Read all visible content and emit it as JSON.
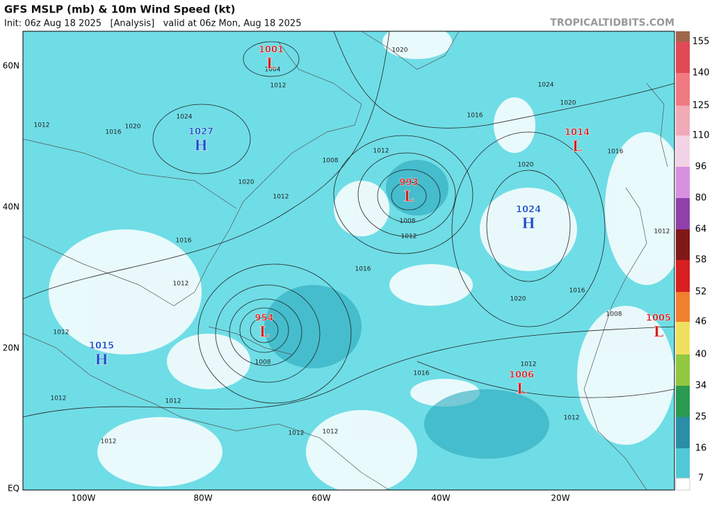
{
  "header": {
    "title": "GFS MSLP (mb) & 10m Wind Speed (kt)",
    "subtitle": "Init: 06z Aug 18 2025   [Analysis]   valid at 06z Mon, Aug 18 2025",
    "source": "TROPICALTIDBITS.COM"
  },
  "map": {
    "lat_labels": [
      "60N",
      "40N",
      "20N",
      "EQ"
    ],
    "lon_labels": [
      "100W",
      "80W",
      "60W",
      "40W",
      "20W"
    ],
    "centers": [
      {
        "type": "L",
        "pressure": 1001
      },
      {
        "type": "H",
        "pressure": 1027
      },
      {
        "type": "H",
        "pressure": 1015
      },
      {
        "type": "L",
        "pressure": 993
      },
      {
        "type": "H",
        "pressure": 1024
      },
      {
        "type": "L",
        "pressure": 1014
      },
      {
        "type": "L",
        "pressure": 954
      },
      {
        "type": "L",
        "pressure": 1005
      },
      {
        "type": "L",
        "pressure": 1006
      }
    ],
    "isobar_labels": [
      1020,
      1004,
      1012,
      1024,
      1020,
      1016,
      1024,
      1012,
      1016,
      1020,
      1012,
      1016,
      1008,
      1020,
      1020,
      1012,
      1008,
      1012,
      1016,
      1012,
      1016,
      1012,
      1016,
      1020,
      1008,
      1012,
      1008,
      1016,
      1012,
      1012,
      1012,
      1012,
      1012,
      1012,
      1012
    ]
  },
  "colorbar": {
    "labels": [
      155,
      140,
      125,
      110,
      96,
      80,
      64,
      58,
      52,
      46,
      40,
      34,
      25,
      16,
      7
    ]
  }
}
